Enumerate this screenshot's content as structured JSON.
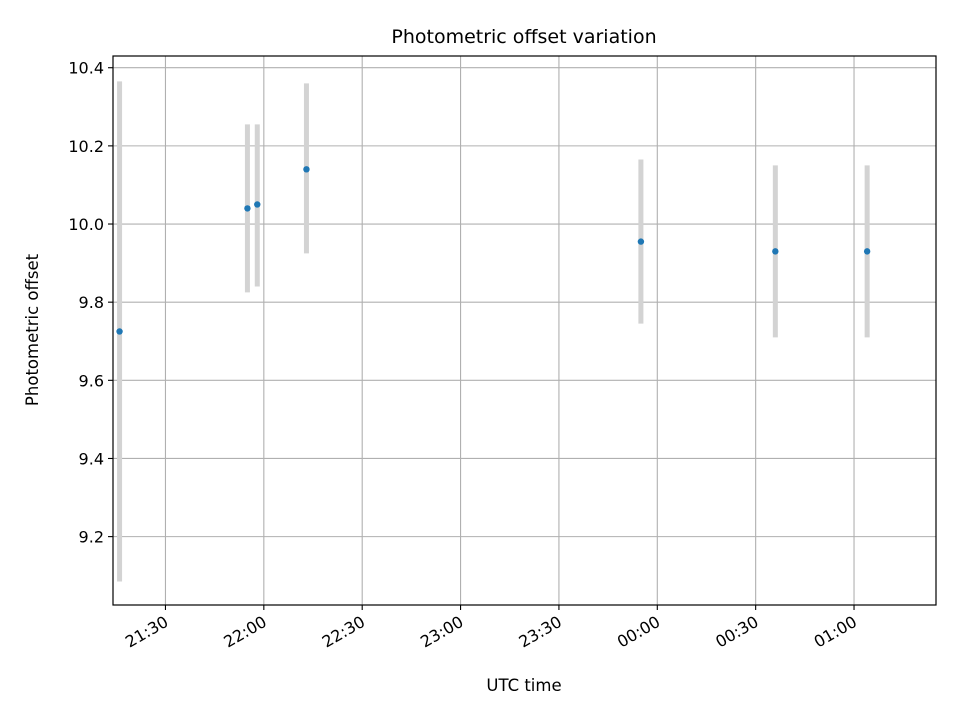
{
  "chart_data": {
    "type": "scatter",
    "title": "Photometric offset variation",
    "xlabel": "UTC time",
    "ylabel": "Photometric offset",
    "x_tick_labels": [
      "21:30",
      "22:00",
      "22:30",
      "23:00",
      "23:30",
      "00:00",
      "00:30",
      "01:00"
    ],
    "y_tick_labels": [
      "9.2",
      "9.4",
      "9.6",
      "9.8",
      "10.0",
      "10.2",
      "10.4"
    ],
    "xlim": [
      "21:14",
      "01:25"
    ],
    "ylim": [
      9.025,
      10.43
    ],
    "grid": true,
    "series": [
      {
        "x": [
          "21:16",
          "21:55",
          "21:58",
          "22:13",
          "23:55",
          "00:36",
          "01:04"
        ],
        "values": [
          9.725,
          10.04,
          10.05,
          10.14,
          9.955,
          9.93,
          9.93
        ],
        "error_low": [
          9.085,
          9.825,
          9.84,
          9.925,
          9.745,
          9.71,
          9.71
        ],
        "error_high": [
          10.365,
          10.255,
          10.255,
          10.36,
          10.165,
          10.15,
          10.15
        ]
      }
    ],
    "colors": {
      "points": "#1f77b4",
      "errorbars": "#d3d3d3",
      "grid": "#b0b0b0"
    }
  }
}
